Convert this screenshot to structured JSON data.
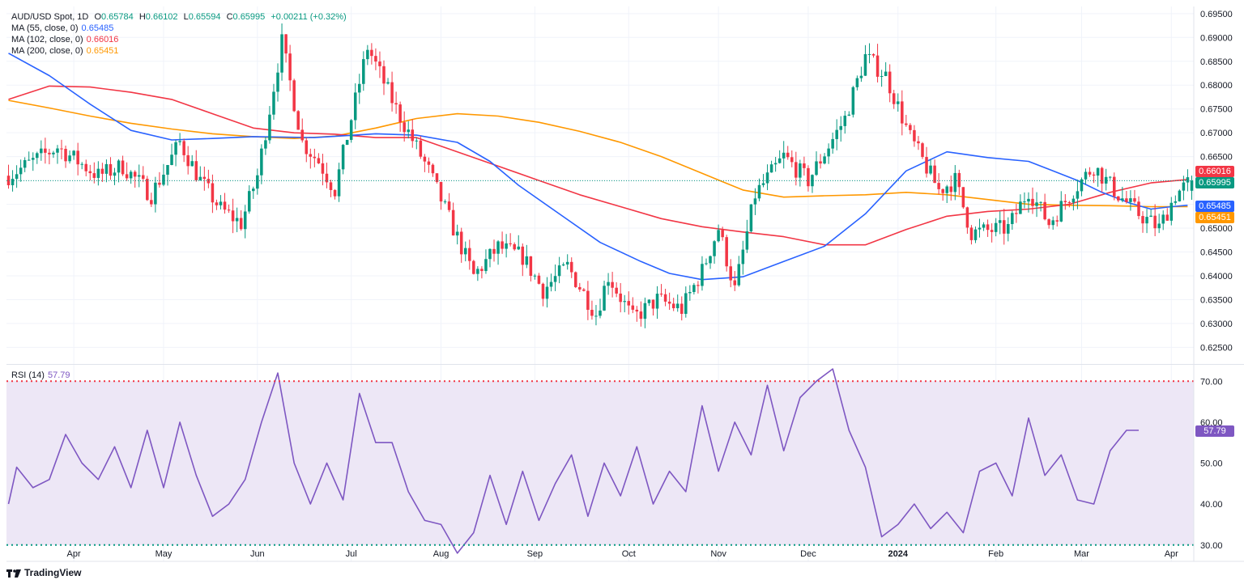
{
  "header": {
    "symbol": "AUD/USD Spot, 1D",
    "open_label": "O",
    "open": "0.65784",
    "high_label": "H",
    "high": "0.66102",
    "low_label": "L",
    "low": "0.65594",
    "close_label": "C",
    "close": "0.65995",
    "change": "+0.00211 (+0.32%)"
  },
  "ma_legend": [
    {
      "label": "MA (55, close, 0)",
      "value": "0.65485",
      "color": "#2962ff"
    },
    {
      "label": "MA (102, close, 0)",
      "value": "0.66016",
      "color": "#f23645"
    },
    {
      "label": "MA (200, close, 0)",
      "value": "0.65451",
      "color": "#ff9800"
    }
  ],
  "rsi_legend": {
    "label": "RSI (14)",
    "value": "57.79",
    "color": "#7e57c2"
  },
  "price_tags": [
    {
      "value": "0.66016",
      "color": "#f23645"
    },
    {
      "value": "0.65995",
      "color": "#089981"
    },
    {
      "value": "0.65485",
      "color": "#2962ff"
    },
    {
      "value": "0.65451",
      "color": "#ff9800"
    }
  ],
  "rsi_tag": {
    "value": "57.79",
    "color": "#7e57c2"
  },
  "brand": "TradingView",
  "colors": {
    "up": "#089981",
    "down": "#f23645",
    "grid": "#f0f3fa",
    "rsi_band": "#ede7f6",
    "rsi_upper": "#f23645",
    "rsi_lower": "#089981"
  },
  "chart_data": {
    "type": "candlestick",
    "title": "AUD/USD Spot, 1D",
    "x_tick_labels": [
      "Apr",
      "May",
      "Jun",
      "Jul",
      "Aug",
      "Sep",
      "Oct",
      "Nov",
      "Dec",
      "2024",
      "Feb",
      "Mar",
      "Apr"
    ],
    "x_tick_bars": [
      16,
      38,
      61,
      84,
      106,
      129,
      152,
      174,
      196,
      218,
      242,
      263,
      285
    ],
    "bar_count": 291,
    "price_axis": {
      "ylim": [
        0.6215,
        0.6965
      ],
      "ticks": [
        "0.69500",
        "0.69000",
        "0.68500",
        "0.68000",
        "0.67500",
        "0.67000",
        "0.66500",
        "0.66000",
        "0.65500",
        "0.65000",
        "0.64500",
        "0.64000",
        "0.63500",
        "0.63000",
        "0.62500"
      ]
    },
    "rsi_axis": {
      "ylim": [
        26,
        74
      ],
      "ticks": [
        "70.00",
        "60.00",
        "50.00",
        "40.00",
        "30.00"
      ],
      "overbought": 70,
      "oversold": 30
    },
    "price_anchors": [
      [
        0,
        0.661
      ],
      [
        12,
        0.667
      ],
      [
        22,
        0.661
      ],
      [
        28,
        0.663
      ],
      [
        35,
        0.657
      ],
      [
        42,
        0.668
      ],
      [
        47,
        0.66
      ],
      [
        52,
        0.654
      ],
      [
        57,
        0.651
      ],
      [
        61,
        0.661
      ],
      [
        67,
        0.689
      ],
      [
        72,
        0.668
      ],
      [
        76,
        0.664
      ],
      [
        80,
        0.658
      ],
      [
        88,
        0.688
      ],
      [
        95,
        0.675
      ],
      [
        103,
        0.662
      ],
      [
        108,
        0.652
      ],
      [
        114,
        0.64
      ],
      [
        120,
        0.646
      ],
      [
        126,
        0.644
      ],
      [
        131,
        0.637
      ],
      [
        137,
        0.642
      ],
      [
        144,
        0.632
      ],
      [
        147,
        0.64
      ],
      [
        153,
        0.631
      ],
      [
        159,
        0.635
      ],
      [
        165,
        0.633
      ],
      [
        170,
        0.641
      ],
      [
        174,
        0.65
      ],
      [
        178,
        0.637
      ],
      [
        183,
        0.657
      ],
      [
        190,
        0.665
      ],
      [
        196,
        0.66
      ],
      [
        205,
        0.673
      ],
      [
        210,
        0.686
      ],
      [
        215,
        0.682
      ],
      [
        221,
        0.669
      ],
      [
        228,
        0.658
      ],
      [
        232,
        0.66
      ],
      [
        236,
        0.649
      ],
      [
        245,
        0.65
      ],
      [
        250,
        0.658
      ],
      [
        255,
        0.651
      ],
      [
        261,
        0.658
      ],
      [
        266,
        0.663
      ],
      [
        272,
        0.657
      ],
      [
        277,
        0.653
      ],
      [
        282,
        0.65
      ],
      [
        286,
        0.657
      ],
      [
        290,
        0.66
      ]
    ],
    "ma55_anchors": [
      [
        0,
        0.6867
      ],
      [
        10,
        0.682
      ],
      [
        20,
        0.676
      ],
      [
        30,
        0.6705
      ],
      [
        40,
        0.6685
      ],
      [
        50,
        0.6688
      ],
      [
        60,
        0.6692
      ],
      [
        75,
        0.669
      ],
      [
        90,
        0.6698
      ],
      [
        100,
        0.6695
      ],
      [
        110,
        0.668
      ],
      [
        118,
        0.664
      ],
      [
        125,
        0.659
      ],
      [
        135,
        0.653
      ],
      [
        145,
        0.647
      ],
      [
        155,
        0.643
      ],
      [
        162,
        0.6405
      ],
      [
        170,
        0.6392
      ],
      [
        180,
        0.6398
      ],
      [
        190,
        0.643
      ],
      [
        200,
        0.6462
      ],
      [
        210,
        0.653
      ],
      [
        220,
        0.662
      ],
      [
        230,
        0.666
      ],
      [
        240,
        0.6648
      ],
      [
        250,
        0.664
      ],
      [
        256,
        0.662
      ],
      [
        262,
        0.66
      ],
      [
        268,
        0.6575
      ],
      [
        275,
        0.6552
      ],
      [
        280,
        0.654
      ],
      [
        285,
        0.6545
      ],
      [
        289,
        0.6548
      ]
    ],
    "ma102_anchors": [
      [
        0,
        0.677
      ],
      [
        10,
        0.6798
      ],
      [
        20,
        0.6796
      ],
      [
        30,
        0.6785
      ],
      [
        40,
        0.677
      ],
      [
        50,
        0.674
      ],
      [
        60,
        0.671
      ],
      [
        70,
        0.67
      ],
      [
        80,
        0.6697
      ],
      [
        90,
        0.669
      ],
      [
        100,
        0.669
      ],
      [
        110,
        0.666
      ],
      [
        120,
        0.663
      ],
      [
        130,
        0.66
      ],
      [
        140,
        0.657
      ],
      [
        150,
        0.6545
      ],
      [
        160,
        0.652
      ],
      [
        170,
        0.6503
      ],
      [
        180,
        0.6492
      ],
      [
        190,
        0.6482
      ],
      [
        200,
        0.6465
      ],
      [
        210,
        0.6465
      ],
      [
        220,
        0.6497
      ],
      [
        230,
        0.6525
      ],
      [
        240,
        0.6535
      ],
      [
        250,
        0.654
      ],
      [
        260,
        0.655
      ],
      [
        270,
        0.6575
      ],
      [
        280,
        0.6595
      ],
      [
        289,
        0.6602
      ]
    ],
    "ma200_anchors": [
      [
        0,
        0.6768
      ],
      [
        10,
        0.6752
      ],
      [
        20,
        0.6735
      ],
      [
        30,
        0.672
      ],
      [
        40,
        0.6708
      ],
      [
        50,
        0.6698
      ],
      [
        60,
        0.6692
      ],
      [
        70,
        0.6688
      ],
      [
        80,
        0.6693
      ],
      [
        90,
        0.671
      ],
      [
        100,
        0.673
      ],
      [
        110,
        0.674
      ],
      [
        120,
        0.6735
      ],
      [
        130,
        0.6722
      ],
      [
        140,
        0.6703
      ],
      [
        150,
        0.668
      ],
      [
        160,
        0.665
      ],
      [
        170,
        0.6615
      ],
      [
        180,
        0.658
      ],
      [
        190,
        0.6565
      ],
      [
        200,
        0.6568
      ],
      [
        210,
        0.657
      ],
      [
        220,
        0.6575
      ],
      [
        230,
        0.657
      ],
      [
        240,
        0.656
      ],
      [
        250,
        0.655
      ],
      [
        260,
        0.6548
      ],
      [
        270,
        0.6547
      ],
      [
        280,
        0.6545
      ],
      [
        289,
        0.6545
      ]
    ],
    "rsi_anchors": [
      [
        0,
        40
      ],
      [
        2,
        49
      ],
      [
        6,
        44
      ],
      [
        10,
        46
      ],
      [
        14,
        57
      ],
      [
        18,
        50
      ],
      [
        22,
        46
      ],
      [
        26,
        54
      ],
      [
        30,
        44
      ],
      [
        34,
        58
      ],
      [
        38,
        44
      ],
      [
        42,
        60
      ],
      [
        46,
        47
      ],
      [
        50,
        37
      ],
      [
        54,
        40
      ],
      [
        58,
        46
      ],
      [
        62,
        60
      ],
      [
        66,
        72
      ],
      [
        70,
        50
      ],
      [
        74,
        40
      ],
      [
        78,
        50
      ],
      [
        82,
        41
      ],
      [
        86,
        67
      ],
      [
        90,
        55
      ],
      [
        94,
        55
      ],
      [
        98,
        43
      ],
      [
        102,
        36
      ],
      [
        106,
        35
      ],
      [
        110,
        28
      ],
      [
        114,
        33
      ],
      [
        118,
        47
      ],
      [
        122,
        35
      ],
      [
        126,
        48
      ],
      [
        130,
        36
      ],
      [
        134,
        45
      ],
      [
        138,
        52
      ],
      [
        142,
        37
      ],
      [
        146,
        50
      ],
      [
        150,
        42
      ],
      [
        154,
        54
      ],
      [
        158,
        40
      ],
      [
        162,
        48
      ],
      [
        166,
        43
      ],
      [
        170,
        64
      ],
      [
        174,
        48
      ],
      [
        178,
        60
      ],
      [
        182,
        52
      ],
      [
        186,
        69
      ],
      [
        190,
        53
      ],
      [
        194,
        66
      ],
      [
        198,
        70
      ],
      [
        202,
        73
      ],
      [
        206,
        58
      ],
      [
        210,
        49
      ],
      [
        214,
        32
      ],
      [
        218,
        35
      ],
      [
        222,
        40
      ],
      [
        226,
        34
      ],
      [
        230,
        38
      ],
      [
        234,
        33
      ],
      [
        238,
        48
      ],
      [
        242,
        50
      ],
      [
        246,
        42
      ],
      [
        250,
        61
      ],
      [
        254,
        47
      ],
      [
        258,
        52
      ],
      [
        262,
        41
      ],
      [
        266,
        40
      ],
      [
        270,
        53
      ],
      [
        274,
        58
      ],
      [
        277,
        58
      ]
    ]
  }
}
